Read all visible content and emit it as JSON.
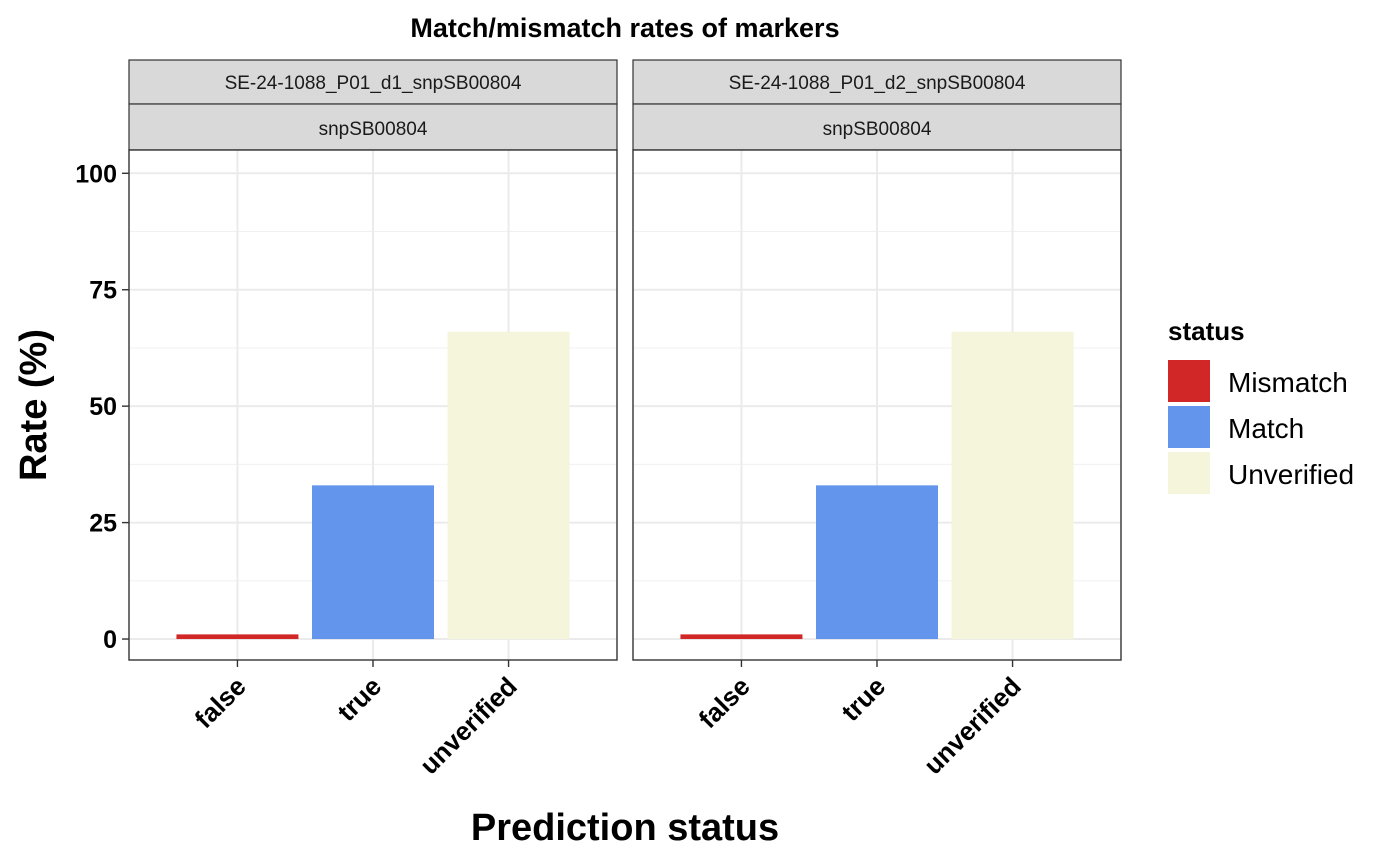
{
  "chart_data": {
    "type": "bar",
    "title": "Match/mismatch rates of markers",
    "xlabel": "Prediction status",
    "ylabel": "Rate (%)",
    "ylim": [
      -4.5,
      105
    ],
    "yticks": [
      0,
      25,
      50,
      75,
      100
    ],
    "grid": true,
    "legend": {
      "title": "status",
      "placement": "right",
      "entries": [
        {
          "label": "Mismatch",
          "color": "#d12727"
        },
        {
          "label": "Match",
          "color": "#6495ed"
        },
        {
          "label": "Unverified",
          "color": "#f5f5dc"
        }
      ]
    },
    "categories": [
      "false",
      "true",
      "unverified"
    ],
    "panels": [
      {
        "strip1": "SE-24-1088_P01_d1_snpSB00804",
        "strip2": "snpSB00804",
        "bars": [
          {
            "category": "false",
            "status": "Mismatch",
            "value": 1
          },
          {
            "category": "true",
            "status": "Match",
            "value": 33
          },
          {
            "category": "unverified",
            "status": "Unverified",
            "value": 66
          }
        ]
      },
      {
        "strip1": "SE-24-1088_P01_d2_snpSB00804",
        "strip2": "snpSB00804",
        "bars": [
          {
            "category": "false",
            "status": "Mismatch",
            "value": 1
          },
          {
            "category": "true",
            "status": "Match",
            "value": 33
          },
          {
            "category": "unverified",
            "status": "Unverified",
            "value": 66
          }
        ]
      }
    ]
  }
}
